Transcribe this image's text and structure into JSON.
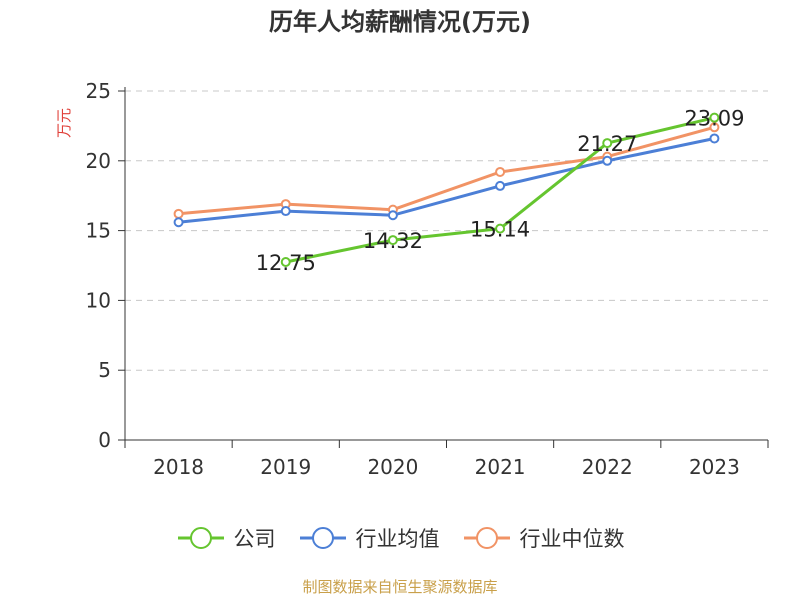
{
  "chart_data": {
    "type": "line",
    "title": "历年人均薪酬情况(万元)",
    "ylabel": "万元",
    "xlabel": "",
    "categories": [
      "2018",
      "2019",
      "2020",
      "2021",
      "2022",
      "2023"
    ],
    "ylim": [
      0,
      25
    ],
    "yticks": [
      0,
      5,
      10,
      15,
      20,
      25
    ],
    "grid": true,
    "legend_position": "bottom",
    "series": [
      {
        "name": "公司",
        "color": "#65c52f",
        "values": [
          null,
          12.75,
          14.32,
          15.14,
          21.27,
          23.09
        ],
        "labels": [
          "",
          "12.75",
          "14.32",
          "15.14",
          "21.27",
          "23.09"
        ]
      },
      {
        "name": "行业均值",
        "color": "#4c7fd6",
        "values": [
          15.6,
          16.4,
          16.1,
          18.2,
          20.0,
          21.6
        ],
        "labels": []
      },
      {
        "name": "行业中位数",
        "color": "#f19365",
        "values": [
          16.2,
          16.9,
          16.5,
          19.2,
          20.3,
          22.4
        ],
        "labels": []
      }
    ]
  },
  "source": "制图数据来自恒生聚源数据库"
}
